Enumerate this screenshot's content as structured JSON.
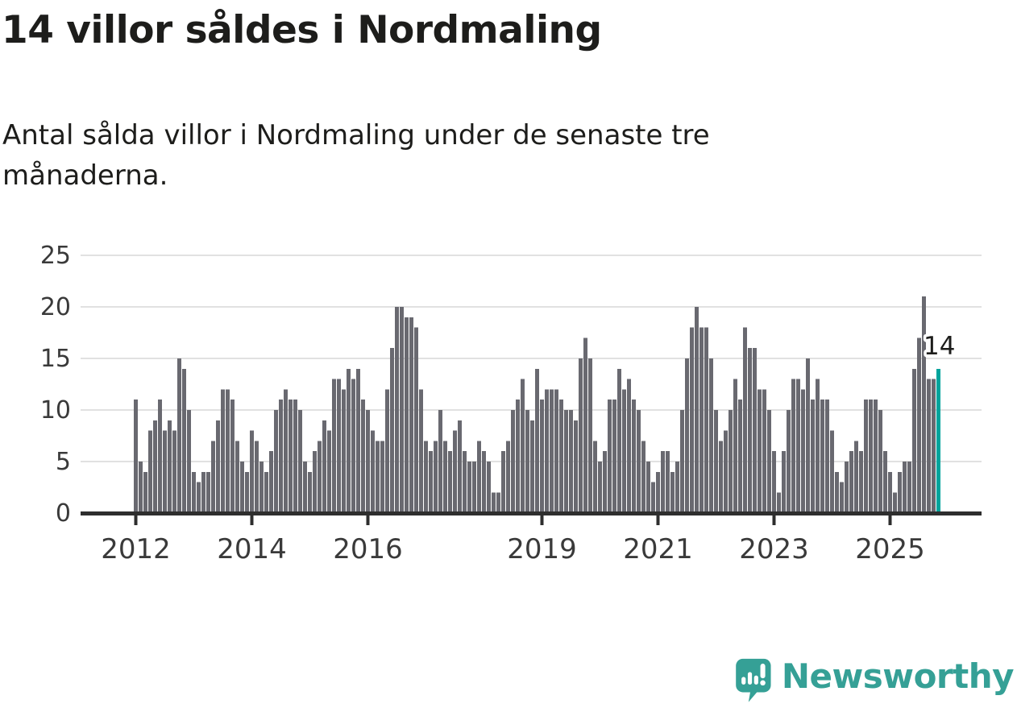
{
  "title": "14 villor såldes i Nordmaling",
  "subtitle": {
    "line1": "Antal sålda villor i Nordmaling under de senaste tre",
    "line2": "månaderna."
  },
  "chart_data": {
    "type": "bar",
    "title": "14 villor såldes i Nordmaling",
    "subtitle": "Antal sålda villor i Nordmaling under de senaste tre månaderna.",
    "frequency": "monthly",
    "start_year": 2012,
    "values": [
      11,
      5,
      4,
      8,
      9,
      11,
      8,
      9,
      8,
      15,
      14,
      10,
      4,
      3,
      4,
      4,
      7,
      9,
      12,
      12,
      11,
      7,
      5,
      4,
      8,
      7,
      5,
      4,
      6,
      10,
      11,
      12,
      11,
      11,
      10,
      5,
      4,
      6,
      7,
      9,
      8,
      13,
      13,
      12,
      14,
      13,
      14,
      11,
      10,
      8,
      7,
      7,
      12,
      16,
      20,
      20,
      19,
      19,
      18,
      12,
      7,
      6,
      7,
      10,
      7,
      6,
      8,
      9,
      6,
      5,
      5,
      7,
      6,
      5,
      2,
      2,
      6,
      7,
      10,
      11,
      13,
      10,
      9,
      14,
      11,
      12,
      12,
      12,
      11,
      10,
      10,
      9,
      15,
      17,
      15,
      7,
      5,
      6,
      11,
      11,
      14,
      12,
      13,
      11,
      10,
      7,
      5,
      3,
      4,
      6,
      6,
      4,
      5,
      10,
      15,
      18,
      20,
      18,
      18,
      15,
      10,
      7,
      8,
      10,
      13,
      11,
      18,
      16,
      16,
      12,
      12,
      10,
      6,
      2,
      6,
      10,
      13,
      13,
      12,
      15,
      11,
      13,
      11,
      11,
      8,
      4,
      3,
      5,
      6,
      7,
      6,
      11,
      11,
      11,
      10,
      6,
      4,
      2,
      4,
      5,
      5,
      14,
      17,
      21,
      13,
      13,
      14
    ],
    "highlight_last_bar": true,
    "annotation": {
      "text": "14",
      "applies_to": "last_bar"
    },
    "y_ticks": [
      0,
      5,
      10,
      15,
      20,
      25
    ],
    "ylim": [
      0,
      25
    ],
    "x_tick_years": [
      2012,
      2014,
      2016,
      2019,
      2021,
      2023,
      2025
    ],
    "grid": "horizontal",
    "legend": "none"
  },
  "colors": {
    "bar": "#696970",
    "highlight": "#00a49c",
    "axis": "#2e2e2e",
    "grid": "#e1e1e1",
    "tick_label": "#3a3a3a",
    "annotation_text": "#1d1d1b",
    "annotation_halo": "#ffffff",
    "logo_teal": "#35a096"
  },
  "footer": {
    "brand": "Newsworthy"
  }
}
